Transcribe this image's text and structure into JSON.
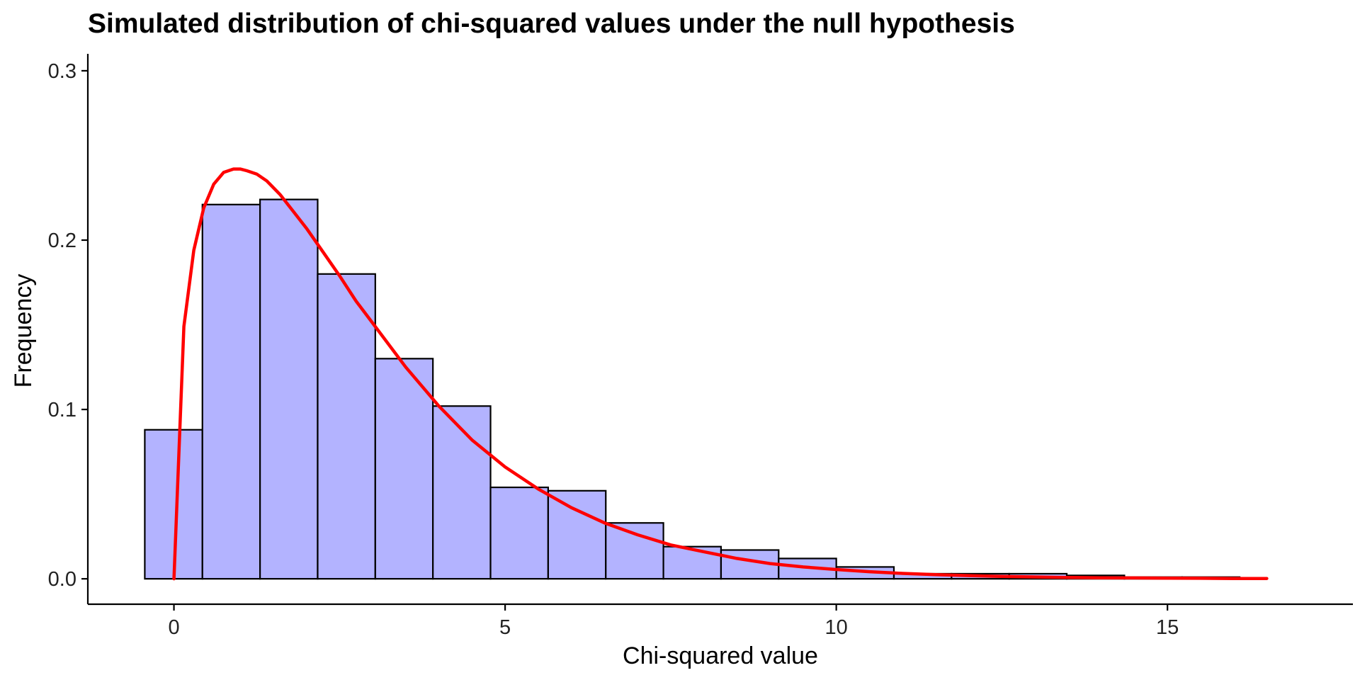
{
  "chart_data": {
    "type": "bar",
    "title": "Simulated distribution of chi-squared values under the null hypothesis",
    "xlabel": "Chi-squared value",
    "ylabel": "Frequency",
    "xlim": [
      -1.3,
      17.8
    ],
    "ylim": [
      -0.015,
      0.31
    ],
    "x_ticks": [
      0,
      5,
      10,
      15
    ],
    "x_tick_labels": [
      "0",
      "5",
      "10",
      "15"
    ],
    "y_ticks": [
      0.0,
      0.1,
      0.2,
      0.3
    ],
    "y_tick_labels": [
      "0.0",
      "0.1",
      "0.2",
      "0.3"
    ],
    "grid": false,
    "legend": "none",
    "colors": {
      "bar_fill": "#b3b3ff",
      "bar_stroke": "#000000",
      "curve": "#ff0000",
      "axis": "#000000"
    },
    "histogram": {
      "bin_start": -0.44,
      "bin_width": 0.87,
      "values": [
        0.088,
        0.221,
        0.224,
        0.18,
        0.13,
        0.102,
        0.054,
        0.052,
        0.033,
        0.019,
        0.017,
        0.012,
        0.007,
        0.003,
        0.003,
        0.003,
        0.002,
        0.001,
        0.001
      ]
    },
    "series": [
      {
        "type": "line",
        "x": [
          0,
          0.15,
          0.3,
          0.45,
          0.6,
          0.75,
          0.9,
          1.0,
          1.1,
          1.25,
          1.4,
          1.6,
          1.8,
          2.0,
          2.25,
          2.5,
          2.75,
          3.0,
          3.5,
          4.0,
          4.5,
          5.0,
          5.5,
          6.0,
          6.5,
          7.0,
          7.5,
          8.0,
          8.5,
          9.0,
          9.5,
          10.0,
          10.5,
          11.0,
          11.5,
          12.0,
          12.5,
          13.0,
          13.5,
          14.0,
          14.5,
          15.0,
          15.5,
          16.0,
          16.5
        ],
        "y": [
          0.0,
          0.149,
          0.194,
          0.219,
          0.233,
          0.24,
          0.242,
          0.242,
          0.241,
          0.239,
          0.235,
          0.227,
          0.217,
          0.207,
          0.193,
          0.179,
          0.164,
          0.151,
          0.125,
          0.102,
          0.082,
          0.066,
          0.053,
          0.042,
          0.033,
          0.026,
          0.02,
          0.016,
          0.012,
          0.009,
          0.007,
          0.0055,
          0.0042,
          0.0032,
          0.0025,
          0.0019,
          0.0014,
          0.0011,
          0.0008,
          0.0006,
          0.0005,
          0.0004,
          0.0003,
          0.0002,
          0.0002
        ]
      }
    ]
  }
}
